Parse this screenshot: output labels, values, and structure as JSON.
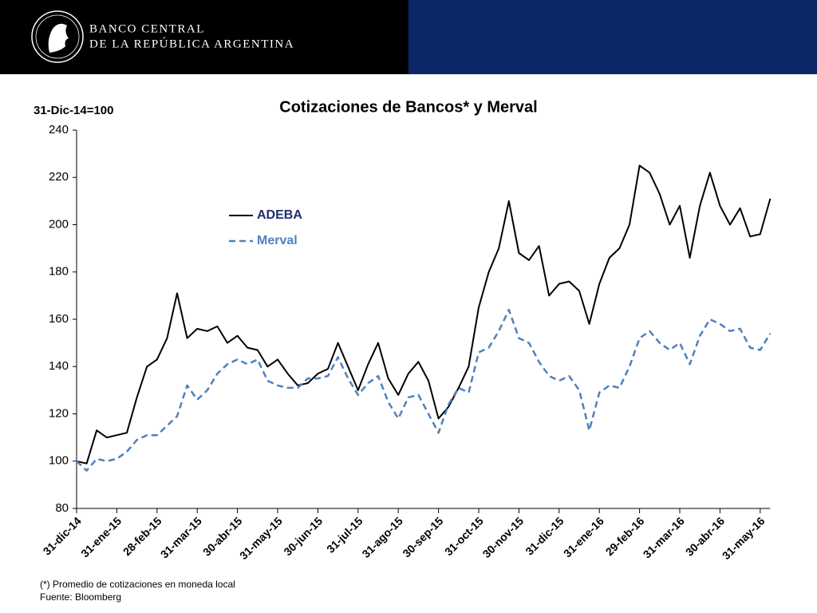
{
  "header": {
    "line1": "BANCO CENTRAL",
    "line2": "DE LA REPÚBLICA ARGENTINA"
  },
  "chart_data": {
    "type": "line",
    "title": "Cotizaciones de Bancos* y Merval",
    "y_label": "31-Dic-14=100",
    "categories": [
      "31-dic-14",
      null,
      null,
      null,
      "31-ene-15",
      null,
      null,
      null,
      "28-feb-15",
      null,
      null,
      null,
      "31-mar-15",
      null,
      null,
      null,
      "30-abr-15",
      null,
      null,
      null,
      "31-may-15",
      null,
      null,
      null,
      "30-jun-15",
      null,
      null,
      null,
      "31-jul-15",
      null,
      null,
      null,
      "31-ago-15",
      null,
      null,
      null,
      "30-sep-15",
      null,
      null,
      null,
      "31-oct-15",
      null,
      null,
      null,
      "30-nov-15",
      null,
      null,
      null,
      "31-dic-15",
      null,
      null,
      null,
      "31-ene-16",
      null,
      null,
      null,
      "29-feb-16",
      null,
      null,
      null,
      "31-mar-16",
      null,
      null,
      null,
      "30-abr-16",
      null,
      null,
      null,
      "31-may-16",
      null
    ],
    "series": [
      {
        "name": "ADEBA",
        "color": "#000000",
        "dash": false,
        "values": [
          100,
          99,
          113,
          110,
          111,
          112,
          127,
          140,
          143,
          152,
          171,
          152,
          156,
          155,
          157,
          150,
          153,
          148,
          147,
          140,
          143,
          137,
          132,
          133,
          137,
          139,
          150,
          140,
          130,
          141,
          150,
          135,
          128,
          137,
          142,
          134,
          118,
          123,
          131,
          140,
          165,
          180,
          190,
          210,
          188,
          185,
          191,
          170,
          175,
          176,
          172,
          158,
          175,
          186,
          190,
          200,
          225,
          222,
          213,
          200,
          208,
          186,
          208,
          222,
          208,
          200,
          207,
          195,
          196,
          211
        ]
      },
      {
        "name": "Merval",
        "color": "#4f81bd",
        "dash": true,
        "values": [
          100,
          96,
          101,
          100,
          101,
          104,
          109,
          111,
          111,
          115,
          119,
          132,
          126,
          130,
          137,
          141,
          143,
          141,
          143,
          134,
          132,
          131,
          131,
          135,
          135,
          136,
          144,
          135,
          128,
          133,
          136,
          125,
          118,
          127,
          128,
          120,
          112,
          124,
          131,
          129,
          146,
          148,
          155,
          164,
          152,
          150,
          142,
          136,
          134,
          136,
          130,
          113,
          129,
          132,
          131,
          140,
          152,
          155,
          150,
          147,
          150,
          141,
          153,
          160,
          158,
          155,
          156,
          148,
          147,
          154
        ]
      }
    ],
    "ylim": [
      80,
      240
    ],
    "yticks": [
      80,
      100,
      120,
      140,
      160,
      180,
      200,
      220,
      240
    ]
  },
  "footnotes": [
    "(*) Promedio de cotizaciones en moneda local",
    "Fuente: Bloomberg"
  ]
}
